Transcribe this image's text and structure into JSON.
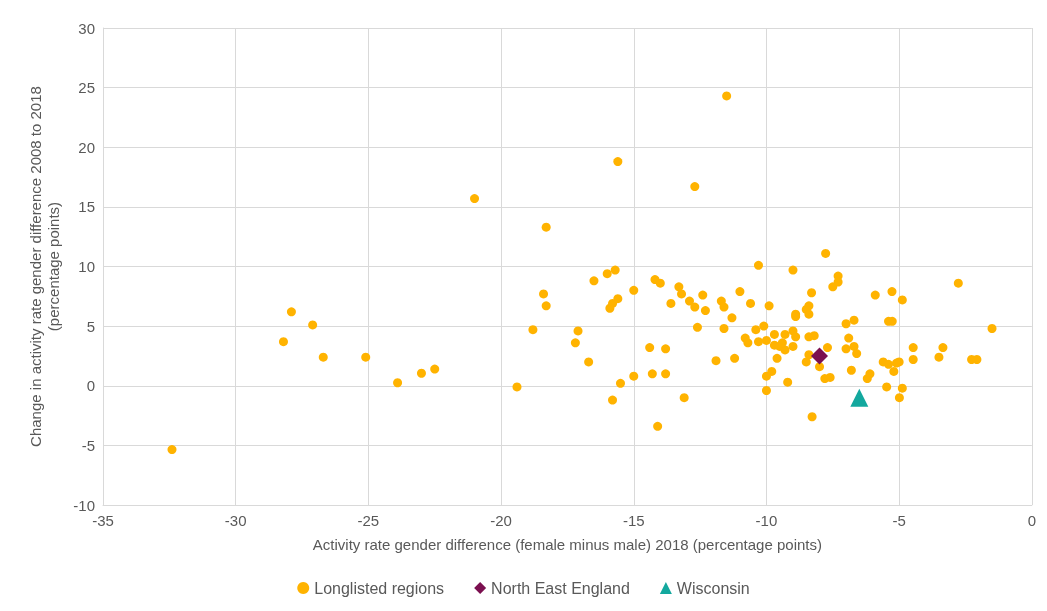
{
  "chart_data": {
    "type": "scatter",
    "xlabel": "Activity rate gender difference (female minus male) 2018 (percentage points)",
    "ylabel": "Change in activity rate gender difference 2008 to 2018\n(percentage points)",
    "xlim": [
      -35,
      0
    ],
    "xticks": [
      -35,
      -30,
      -25,
      -20,
      -15,
      -10,
      -5,
      0
    ],
    "ylim": [
      -10,
      30
    ],
    "yticks": [
      -10,
      -5,
      0,
      5,
      10,
      15,
      20,
      25,
      30
    ],
    "grid": true,
    "legend": "bottom",
    "series": [
      {
        "name": "Longlisted regions",
        "color": "#ffb300",
        "marker": "circle",
        "x": [
          -32.4,
          -28.2,
          -27.9,
          -27.1,
          -26.7,
          -25.1,
          -23.9,
          -23.0,
          -22.5,
          -21.0,
          -19.4,
          -18.8,
          -18.4,
          -18.3,
          -18.3,
          -17.2,
          -17.1,
          -16.7,
          -16.5,
          -16.0,
          -15.9,
          -15.8,
          -15.7,
          -15.6,
          -15.6,
          -15.5,
          -15.8,
          -15.0,
          -15.0,
          -14.4,
          -14.3,
          -14.2,
          -14.0,
          -14.1,
          -13.8,
          -13.8,
          -13.6,
          -13.3,
          -13.2,
          -13.1,
          -12.9,
          -12.7,
          -12.7,
          -12.6,
          -12.4,
          -12.3,
          -11.9,
          -11.7,
          -11.6,
          -11.6,
          -11.5,
          -11.3,
          -11.2,
          -11.0,
          -10.8,
          -10.7,
          -10.6,
          -10.4,
          -10.3,
          -10.3,
          -10.1,
          -10.0,
          -10.0,
          -10.0,
          -9.9,
          -9.8,
          -9.7,
          -9.7,
          -9.6,
          -9.5,
          -9.4,
          -9.3,
          -9.3,
          -9.2,
          -9.0,
          -9.0,
          -9.0,
          -8.9,
          -8.9,
          -8.9,
          -8.5,
          -8.5,
          -8.4,
          -8.4,
          -8.4,
          -8.4,
          -8.3,
          -8.28,
          -8.2,
          -8.0,
          -7.8,
          -7.77,
          -7.7,
          -7.6,
          -7.5,
          -7.3,
          -7.3,
          -7.0,
          -7.0,
          -6.9,
          -6.8,
          -6.7,
          -6.7,
          -6.6,
          -6.2,
          -6.1,
          -5.9,
          -5.6,
          -5.47,
          -5.4,
          -5.4,
          -5.27,
          -5.26,
          -5.2,
          -5.1,
          -5.0,
          -4.99,
          -4.88,
          -4.88,
          -4.47,
          -4.47,
          -3.5,
          -3.35,
          -2.77,
          -2.27,
          -2.07,
          -1.5
        ],
        "values": [
          -5.35,
          3.7,
          6.2,
          5.1,
          2.4,
          2.4,
          0.25,
          1.05,
          1.4,
          15.7,
          -0.1,
          4.7,
          7.7,
          6.7,
          13.3,
          3.6,
          4.6,
          2.0,
          8.8,
          9.4,
          6.5,
          6.9,
          9.7,
          7.3,
          18.8,
          0.2,
          -1.2,
          8.0,
          0.8,
          3.2,
          1.0,
          8.9,
          8.6,
          -3.4,
          3.1,
          1.0,
          6.9,
          8.3,
          7.7,
          -1.0,
          7.1,
          6.6,
          16.7,
          4.9,
          7.6,
          6.3,
          2.1,
          7.1,
          6.6,
          4.8,
          24.3,
          5.7,
          2.3,
          7.9,
          4.0,
          3.6,
          6.9,
          4.7,
          10.1,
          3.7,
          5.0,
          3.8,
          0.8,
          -0.4,
          6.7,
          1.2,
          4.3,
          3.4,
          2.3,
          3.3,
          3.6,
          4.3,
          3.0,
          0.3,
          4.6,
          3.3,
          9.7,
          4.1,
          6.0,
          5.8,
          6.4,
          2.0,
          6.7,
          6.0,
          4.1,
          2.6,
          7.8,
          -2.6,
          4.2,
          1.6,
          0.6,
          11.1,
          3.2,
          0.7,
          8.3,
          9.2,
          8.7,
          5.2,
          3.1,
          4.0,
          1.3,
          5.5,
          3.3,
          2.7,
          0.6,
          1.0,
          7.6,
          2.0,
          -0.1,
          5.4,
          1.8,
          7.9,
          5.4,
          1.2,
          1.9,
          2.0,
          -1.0,
          7.2,
          -0.2,
          3.2,
          2.2,
          2.4,
          3.2,
          8.6,
          2.2,
          2.2,
          4.8
        ]
      },
      {
        "name": "North East England",
        "color": "#7b1050",
        "marker": "diamond",
        "x": [
          -8.0
        ],
        "values": [
          2.5
        ]
      },
      {
        "name": "Wisconsin",
        "color": "#13a89e",
        "marker": "triangle",
        "x": [
          -6.5
        ],
        "values": [
          -1.0
        ]
      }
    ]
  }
}
